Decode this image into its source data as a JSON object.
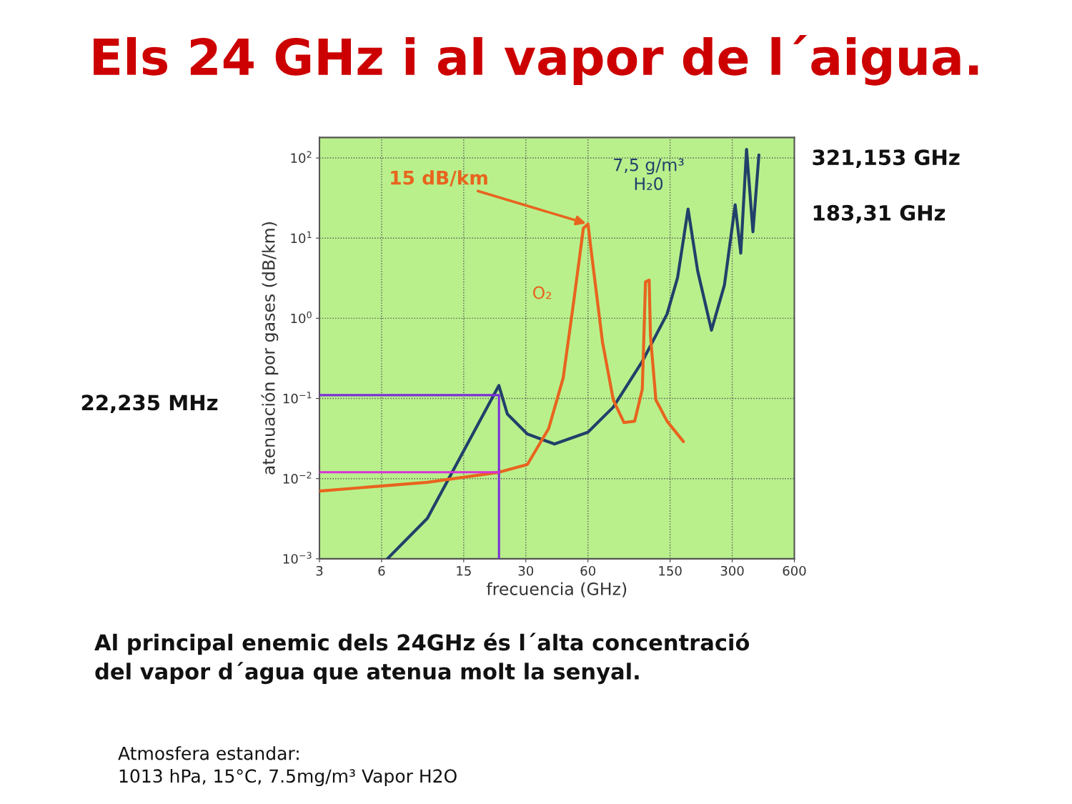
{
  "chart_data": {
    "type": "line",
    "title": "Els 24 GHz i al vapor de l´aigua.",
    "xlabel": "frecuencia (GHz)",
    "ylabel": "atenuación por gases (dB/km)",
    "log": "xy",
    "grid": true,
    "legend": false,
    "marker": "none",
    "line_style": "solid",
    "xlim": [
      3,
      600
    ],
    "xticks": [
      3,
      6,
      15,
      30,
      60,
      150,
      300,
      600
    ],
    "ylim": [
      0.001,
      180
    ],
    "yticks": [
      {
        "value": 0.001,
        "label": "10$^{−3}$"
      },
      {
        "value": 0.01,
        "label": "10$^{−2}$"
      },
      {
        "value": 0.1,
        "label": "10$^{−1}$"
      },
      {
        "value": 1,
        "label": "10$^{0}$"
      },
      {
        "value": 10,
        "label": "10$^{1}$"
      },
      {
        "value": 100,
        "label": "10$^{2}$"
      }
    ],
    "series": [
      {
        "name": "7,5 g/m³\nH₂0",
        "color": "#22406a",
        "x": [
          6.4,
          10,
          22.2,
          24.4,
          30.5,
          41.3,
          60,
          79.6,
          110,
          145,
          163,
          183.31,
          204,
          238,
          275,
          310,
          330,
          352,
          378,
          404
        ],
        "values": [
          0.001,
          0.0032,
          0.145,
          0.064,
          0.036,
          0.027,
          0.038,
          0.078,
          0.29,
          1.13,
          3.2,
          23,
          3.9,
          0.71,
          2.6,
          26,
          6.5,
          128,
          12,
          109
        ]
      },
      {
        "name": "O₂",
        "color": "#e8641e",
        "x": [
          3,
          10,
          22.2,
          30.5,
          38.7,
          45.5,
          51.3,
          57,
          60,
          62.7,
          70.6,
          79.6,
          89.7,
          101,
          110,
          114,
          118.75,
          120.5,
          128,
          145,
          174
        ],
        "values": [
          0.007,
          0.009,
          0.012,
          0.015,
          0.042,
          0.18,
          1.7,
          13.3,
          15,
          5.9,
          0.5,
          0.096,
          0.05,
          0.052,
          0.13,
          2.85,
          3,
          0.6,
          0.096,
          0.052,
          0.029
        ]
      },
      {
        "color": "#7b2fd6",
        "x": [
          3,
          22.235,
          22.235
        ],
        "values": [
          0.11,
          0.11,
          0.001
        ]
      },
      {
        "color": "#d633d6",
        "x": [
          3,
          22.235
        ],
        "values": [
          0.012,
          0.012
        ]
      }
    ],
    "annotations": [
      "22,235 MHz",
      "321,153 GHz",
      "183,31 GHz",
      {
        "text": "15 dB/km",
        "x": 60,
        "y": 15
      },
      "Al principal enemic dels 24GHz és l´alta concentració\ndel vapor d´agua que atenua molt la senyal.",
      "Atmosfera estandar:\n1013 hPa, 15°C, 7.5mg/m³ Vapor H2O"
    ]
  }
}
